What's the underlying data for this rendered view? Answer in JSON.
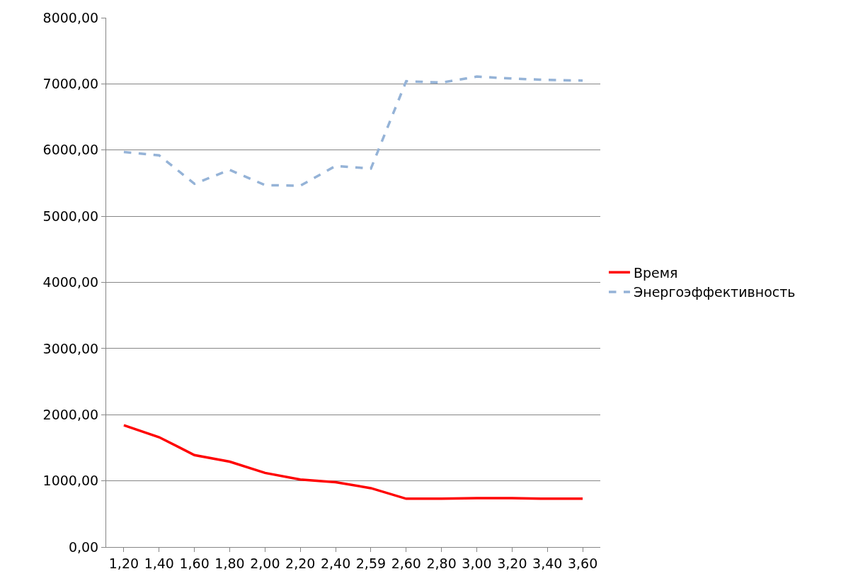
{
  "chart_data": {
    "type": "line",
    "categories": [
      "1,20",
      "1,40",
      "1,60",
      "1,80",
      "2,00",
      "2,20",
      "2,40",
      "2,59",
      "2,60",
      "2,80",
      "3,00",
      "3,20",
      "3,40",
      "3,60"
    ],
    "series": [
      {
        "name": "Время",
        "color": "#ff0000",
        "line_style": "solid",
        "values": [
          1840,
          1660,
          1390,
          1290,
          1120,
          1020,
          980,
          890,
          730,
          730,
          740,
          740,
          730,
          730
        ]
      },
      {
        "name": "Энергоэффективность",
        "color": "#95b3d7",
        "line_style": "dashed",
        "values": [
          5970,
          5920,
          5490,
          5700,
          5470,
          5460,
          5760,
          5720,
          7040,
          7020,
          7110,
          7080,
          7060,
          7050
        ]
      }
    ],
    "ylim": [
      0,
      8000
    ],
    "yticks": [
      {
        "value": 0,
        "label": "0,00"
      },
      {
        "value": 1000,
        "label": "1000,00"
      },
      {
        "value": 2000,
        "label": "2000,00"
      },
      {
        "value": 3000,
        "label": "3000,00"
      },
      {
        "value": 4000,
        "label": "4000,00"
      },
      {
        "value": 5000,
        "label": "5000,00"
      },
      {
        "value": 6000,
        "label": "6000,00"
      },
      {
        "value": 7000,
        "label": "7000,00"
      },
      {
        "value": 8000,
        "label": "8000,00"
      }
    ],
    "grid": "y",
    "legend": "right",
    "marker": "none"
  }
}
